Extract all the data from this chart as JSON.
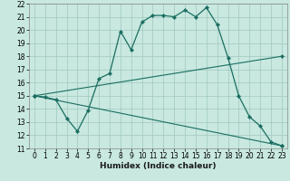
{
  "xlabel": "Humidex (Indice chaleur)",
  "xlim": [
    -0.5,
    23.5
  ],
  "ylim": [
    11,
    22
  ],
  "yticks": [
    11,
    12,
    13,
    14,
    15,
    16,
    17,
    18,
    19,
    20,
    21,
    22
  ],
  "xticks": [
    0,
    1,
    2,
    3,
    4,
    5,
    6,
    7,
    8,
    9,
    10,
    11,
    12,
    13,
    14,
    15,
    16,
    17,
    18,
    19,
    20,
    21,
    22,
    23
  ],
  "bg_color": "#c8e8e0",
  "grid_color": "#a0c8c0",
  "line_color": "#1a6e60",
  "line1_x": [
    0,
    1,
    2,
    3,
    4,
    5,
    6,
    7,
    8,
    9,
    10,
    11,
    12,
    13,
    14,
    15,
    16,
    17,
    18,
    19,
    20,
    21,
    22,
    23
  ],
  "line1_y": [
    15.0,
    14.9,
    14.7,
    13.3,
    12.3,
    13.9,
    16.3,
    16.7,
    19.9,
    18.5,
    20.6,
    21.1,
    21.1,
    21.0,
    21.5,
    21.0,
    21.7,
    20.4,
    17.9,
    15.0,
    13.4,
    12.7,
    11.5,
    11.2
  ],
  "line2_x": [
    0,
    23
  ],
  "line2_y": [
    15.0,
    18.0
  ],
  "line3_x": [
    0,
    23
  ],
  "line3_y": [
    15.0,
    11.2
  ],
  "tick_fontsize": 5.5,
  "xlabel_fontsize": 6.5
}
